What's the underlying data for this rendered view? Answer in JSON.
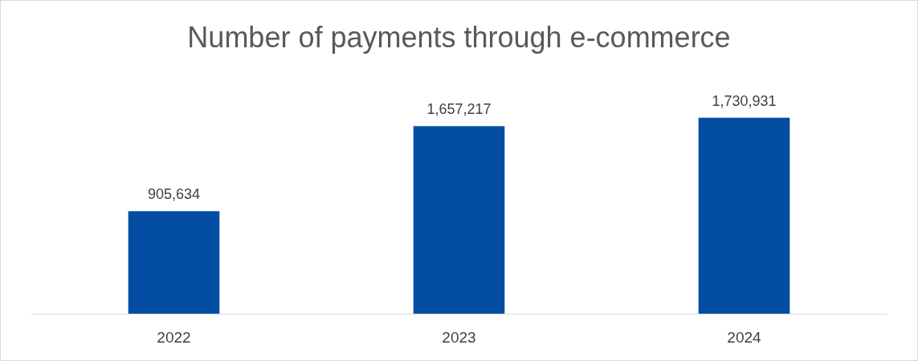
{
  "chart_data": {
    "type": "bar",
    "title": "Number of payments through e-commerce",
    "categories": [
      "2022",
      "2023",
      "2024"
    ],
    "values": [
      905634,
      1657217,
      1730931
    ],
    "color": "#034ea2",
    "value_labels": [
      "905,634",
      "1,657,217",
      "1,730,931"
    ]
  }
}
